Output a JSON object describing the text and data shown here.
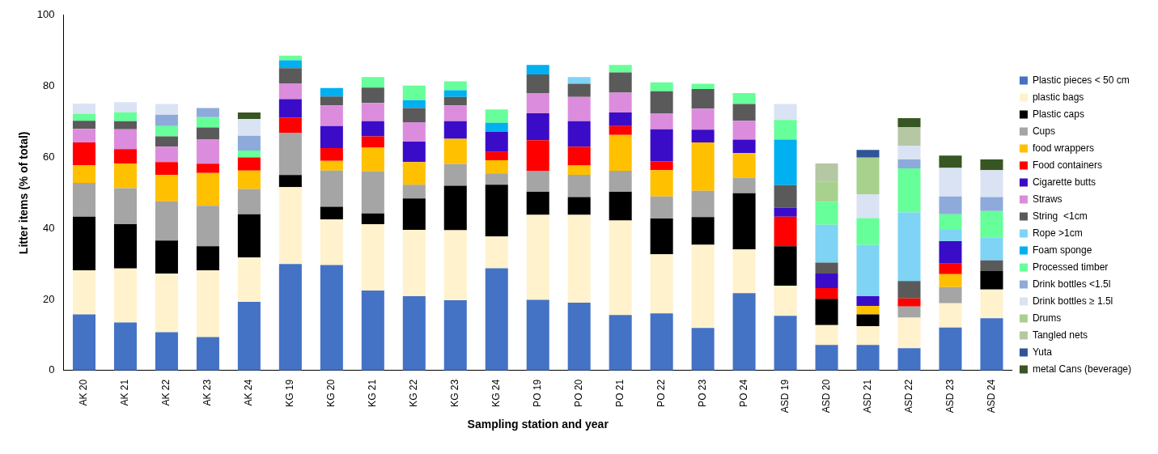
{
  "chart_data": {
    "type": "bar",
    "stacked": true,
    "categories": [
      "AK 20",
      "AK 21",
      "AK 22",
      "AK 23",
      "AK 24",
      "KG 19",
      "KG 20",
      "KG 21",
      "KG 22",
      "KG 23",
      "KG 24",
      "PO 19",
      "PO 20",
      "PO 21",
      "PO 22",
      "PO 23",
      "PO 24",
      "ASD 19",
      "ASD 20",
      "ASD 21",
      "ASD 22",
      "ASD 23",
      "ASD 24"
    ],
    "xlabel": "Sampling station and year",
    "ylabel": "Litter items (% of total)",
    "ylim": [
      0,
      100
    ],
    "yticks": [
      0,
      20,
      40,
      60,
      80,
      100
    ],
    "grid": false,
    "legend": "right",
    "series": [
      {
        "name": "Plastic pieces < 50 cm",
        "color": "#4472c4",
        "values": [
          15.8,
          13.5,
          10.8,
          9.4,
          19.3,
          30,
          29.7,
          22.5,
          20.9,
          19.8,
          28.8,
          19.9,
          19.1,
          15.6,
          16.1,
          12,
          21.8,
          15.4,
          7.2,
          7.2,
          6.3,
          12.1,
          14.7
        ]
      },
      {
        "name": "plastic bags",
        "color": "#fff2cc",
        "values": [
          12.4,
          15.2,
          16.5,
          18.8,
          12.5,
          21.6,
          12.8,
          18.7,
          18.7,
          19.7,
          8.9,
          23.9,
          24.7,
          26.6,
          16.6,
          23.4,
          12.3,
          8.5,
          5.6,
          5.3,
          8.6,
          6.8,
          8.1
        ]
      },
      {
        "name": "Plastic caps",
        "color": "#000000",
        "values": [
          15.1,
          12.5,
          9.3,
          6.8,
          12.2,
          3.4,
          3.6,
          3,
          8.8,
          12.5,
          14.6,
          6.5,
          5,
          8.1,
          10.1,
          7.8,
          15.8,
          11.1,
          7.4,
          3.3,
          null,
          null,
          5.2
        ]
      },
      {
        "name": "Cups",
        "color": "#a5a5a5",
        "values": [
          9.5,
          10.1,
          11,
          11.4,
          7.1,
          11.9,
          10.2,
          11.9,
          3.9,
          6.1,
          3.2,
          5.8,
          6.3,
          5.9,
          6.2,
          7.4,
          4.4,
          null,
          null,
          null,
          3.1,
          4.6,
          null
        ]
      },
      {
        "name": "food wrappers",
        "color": "#ffc000",
        "values": [
          5,
          6.9,
          7.4,
          9.2,
          5.2,
          null,
          2.7,
          6.6,
          6.4,
          7.1,
          3.7,
          null,
          2.6,
          10.1,
          7.4,
          13.6,
          6.9,
          null,
          null,
          2.4,
          null,
          3.6,
          null
        ]
      },
      {
        "name": "Food containers",
        "color": "#ff0000",
        "values": [
          6.4,
          4.1,
          3.7,
          2.6,
          3.7,
          4.3,
          3.6,
          3.2,
          null,
          null,
          2.3,
          8.7,
          5.3,
          2.5,
          2.5,
          null,
          null,
          8.3,
          3,
          null,
          2.3,
          3,
          null
        ]
      },
      {
        "name": "Cigarette butts",
        "color": "#3a0cc8",
        "values": [
          null,
          null,
          null,
          null,
          null,
          5.2,
          6.2,
          4.3,
          5.7,
          5,
          5.7,
          7.6,
          7.2,
          3.8,
          9,
          3.6,
          3.8,
          2.5,
          4.1,
          2.7,
          null,
          6.3,
          null
        ]
      },
      {
        "name": "Straws",
        "color": "#dc8cdc",
        "values": [
          3.8,
          5.6,
          4.3,
          6.8,
          null,
          4.4,
          5.8,
          5.1,
          5.5,
          4.4,
          null,
          5.7,
          6.8,
          5.6,
          4.5,
          5.9,
          5.3,
          null,
          null,
          null,
          null,
          null,
          null
        ]
      },
      {
        "name": "String  <1cm",
        "color": "#5a5a5a",
        "values": [
          2.3,
          2.3,
          2.9,
          3.4,
          null,
          4.3,
          2.5,
          4.3,
          4,
          2.4,
          null,
          5.2,
          3.7,
          5.7,
          6.2,
          5.5,
          4.7,
          6.4,
          3.1,
          null,
          4.9,
          null,
          3
        ]
      },
      {
        "name": "Rope >1cm",
        "color": "#7fd3f5",
        "values": [
          null,
          null,
          null,
          null,
          null,
          null,
          null,
          null,
          null,
          null,
          null,
          null,
          1.9,
          null,
          null,
          null,
          null,
          null,
          10.6,
          14.4,
          19.3,
          3.2,
          6.5
        ]
      },
      {
        "name": "Foam sponge",
        "color": "#00b0f0",
        "values": [
          null,
          null,
          null,
          null,
          null,
          2.2,
          2.4,
          null,
          2.2,
          1.9,
          2.5,
          2.7,
          null,
          null,
          null,
          null,
          null,
          12.8,
          null,
          null,
          null,
          null,
          null
        ]
      },
      {
        "name": "Processed timber",
        "color": "#66ff99",
        "values": [
          2,
          2.5,
          2.9,
          2.9,
          1.9,
          1.3,
          null,
          3,
          4.1,
          2.5,
          3.8,
          null,
          null,
          2.1,
          2.5,
          1.5,
          3.1,
          5.5,
          6.5,
          7.6,
          12.4,
          4.4,
          7.4
        ]
      },
      {
        "name": "Drink bottles <1.5l",
        "color": "#8eaadb",
        "values": [
          null,
          null,
          3.2,
          2.6,
          4.2,
          null,
          null,
          null,
          null,
          null,
          null,
          null,
          null,
          null,
          null,
          null,
          null,
          null,
          null,
          null,
          2.5,
          5,
          3.9
        ]
      },
      {
        "name": "Drink bottles ≥ 1.5l",
        "color": "#dae3f3",
        "values": [
          2.8,
          2.8,
          3,
          null,
          4.7,
          null,
          null,
          null,
          null,
          null,
          null,
          null,
          null,
          null,
          null,
          null,
          null,
          4.5,
          null,
          6.7,
          3.9,
          8,
          7.6
        ]
      },
      {
        "name": "Drums",
        "color": "#a9d18e",
        "values": [
          null,
          null,
          null,
          null,
          null,
          null,
          null,
          null,
          null,
          null,
          null,
          null,
          null,
          null,
          null,
          null,
          null,
          null,
          5.7,
          10.3,
          null,
          null,
          null
        ]
      },
      {
        "name": "Tangled nets",
        "color": "#b5c7a3",
        "values": [
          null,
          null,
          null,
          null,
          null,
          null,
          null,
          null,
          null,
          null,
          null,
          null,
          null,
          null,
          null,
          null,
          null,
          null,
          5.1,
          null,
          5.2,
          null,
          null
        ]
      },
      {
        "name": "Yuta",
        "color": "#2f5597",
        "values": [
          null,
          null,
          null,
          null,
          null,
          null,
          null,
          null,
          null,
          null,
          null,
          null,
          null,
          null,
          null,
          null,
          null,
          null,
          null,
          2.2,
          null,
          null,
          null
        ]
      },
      {
        "name": "metal Cans (beverage)",
        "color": "#375623",
        "values": [
          null,
          null,
          null,
          null,
          1.8,
          null,
          null,
          null,
          null,
          null,
          null,
          null,
          null,
          null,
          null,
          null,
          null,
          null,
          null,
          null,
          2.5,
          3.5,
          3
        ]
      }
    ]
  }
}
